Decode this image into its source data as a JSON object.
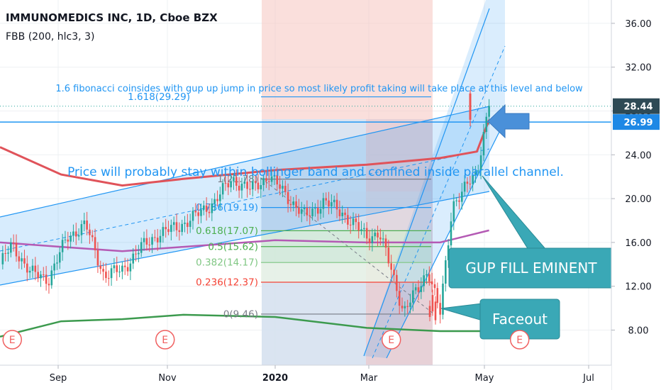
{
  "header": {
    "title": "IMMUNOMEDICS INC, 1D, Cboe BZX",
    "indicator": "FBB (200, hlc3, 3)"
  },
  "price_badges": [
    {
      "value": "28.44",
      "color": "#2e4a55"
    },
    {
      "value": "26.99",
      "color": "#1e88e5"
    }
  ],
  "annotations": {
    "fib_note": "1.6 fibonacci coinsides with gup up jump in price so most likely profit taking will take place at this level and below",
    "channel_note": "Price will probably stay within bollinger band and confined inside parallel channel.",
    "callout_gap": "GUP FILL EMINENT",
    "callout_faceout": "Faceout",
    "earnings_marker": "E"
  },
  "colors": {
    "upper_band": "#e0535a",
    "middle_band": "#b45ab4",
    "lower_band": "#3c9a4e",
    "channel": "#2196f3",
    "candle_up": "#26a69a",
    "candle_down": "#ef5350",
    "callout": "#3aa8b6"
  },
  "chart_data": {
    "type": "candlestick",
    "symbol": "IMMUNOMEDICS INC",
    "interval": "1D",
    "exchange": "Cboe BZX",
    "x_ticks": [
      "Sep",
      "Nov",
      "2020",
      "Mar",
      "May",
      "Jul"
    ],
    "y_ticks": [
      "8.00",
      "12.00",
      "16.00",
      "20.00",
      "24.00",
      "28.00",
      "32.00",
      "36.00"
    ],
    "ylim": [
      5.0,
      37.5
    ],
    "last_price": 28.44,
    "horizontal_level": 26.99,
    "price_path": [
      {
        "x": 0.0,
        "y": 14.0
      },
      {
        "x": 0.02,
        "y": 15.8
      },
      {
        "x": 0.05,
        "y": 13.2
      },
      {
        "x": 0.08,
        "y": 12.7
      },
      {
        "x": 0.11,
        "y": 16.5
      },
      {
        "x": 0.14,
        "y": 17.6
      },
      {
        "x": 0.17,
        "y": 13.0
      },
      {
        "x": 0.2,
        "y": 13.5
      },
      {
        "x": 0.23,
        "y": 15.5
      },
      {
        "x": 0.26,
        "y": 16.8
      },
      {
        "x": 0.29,
        "y": 17.4
      },
      {
        "x": 0.32,
        "y": 18.4
      },
      {
        "x": 0.35,
        "y": 19.7
      },
      {
        "x": 0.38,
        "y": 21.8
      },
      {
        "x": 0.41,
        "y": 20.8
      },
      {
        "x": 0.44,
        "y": 22.1
      },
      {
        "x": 0.47,
        "y": 20.2
      },
      {
        "x": 0.5,
        "y": 18.3
      },
      {
        "x": 0.53,
        "y": 19.8
      },
      {
        "x": 0.56,
        "y": 18.7
      },
      {
        "x": 0.6,
        "y": 16.5
      },
      {
        "x": 0.62,
        "y": 16.9
      },
      {
        "x": 0.64,
        "y": 13.5
      },
      {
        "x": 0.66,
        "y": 9.7
      },
      {
        "x": 0.685,
        "y": 11.8
      },
      {
        "x": 0.7,
        "y": 13.6
      },
      {
        "x": 0.72,
        "y": 9.5
      },
      {
        "x": 0.74,
        "y": 19.5
      },
      {
        "x": 0.765,
        "y": 21.2
      },
      {
        "x": 0.78,
        "y": 22.4
      },
      {
        "x": 0.8,
        "y": 28.8
      }
    ],
    "bollinger": {
      "upper": [
        {
          "x": 0.0,
          "y": 24.7
        },
        {
          "x": 0.1,
          "y": 22.2
        },
        {
          "x": 0.2,
          "y": 21.2
        },
        {
          "x": 0.3,
          "y": 21.8
        },
        {
          "x": 0.45,
          "y": 22.6
        },
        {
          "x": 0.6,
          "y": 23.1
        },
        {
          "x": 0.72,
          "y": 23.7
        },
        {
          "x": 0.78,
          "y": 24.3
        },
        {
          "x": 0.8,
          "y": 27.2
        }
      ],
      "middle": [
        {
          "x": 0.0,
          "y": 16.0
        },
        {
          "x": 0.1,
          "y": 15.6
        },
        {
          "x": 0.2,
          "y": 15.2
        },
        {
          "x": 0.3,
          "y": 15.6
        },
        {
          "x": 0.45,
          "y": 16.2
        },
        {
          "x": 0.6,
          "y": 16.0
        },
        {
          "x": 0.72,
          "y": 16.0
        },
        {
          "x": 0.8,
          "y": 17.1
        }
      ],
      "lower": [
        {
          "x": 0.0,
          "y": 7.4
        },
        {
          "x": 0.1,
          "y": 8.8
        },
        {
          "x": 0.2,
          "y": 9.0
        },
        {
          "x": 0.3,
          "y": 9.4
        },
        {
          "x": 0.45,
          "y": 9.2
        },
        {
          "x": 0.6,
          "y": 8.2
        },
        {
          "x": 0.72,
          "y": 7.9
        },
        {
          "x": 0.8,
          "y": 7.9
        }
      ]
    },
    "fib_levels": [
      {
        "ratio": "1.618",
        "value": 29.29,
        "label": "1.618(29.29)",
        "color": "#2196f3"
      },
      {
        "ratio": "1",
        "value": 21.78,
        "label": "1(21.78)",
        "color": "#787b86"
      },
      {
        "ratio": "0.786",
        "value": 19.19,
        "label": "0.786(19.19)",
        "color": "#2196f3"
      },
      {
        "ratio": "0.618",
        "value": 17.07,
        "label": "0.618(17.07)",
        "color": "#4caf50"
      },
      {
        "ratio": "0.5",
        "value": 15.62,
        "label": "0.5(15.62)",
        "color": "#4caf50"
      },
      {
        "ratio": "0.382",
        "value": 14.17,
        "label": "0.382(14.17)",
        "color": "#81c784"
      },
      {
        "ratio": "0.236",
        "value": 12.37,
        "label": "0.236(12.37)",
        "color": "#f44336"
      },
      {
        "ratio": "0",
        "value": 9.46,
        "label": "0(9.46)",
        "color": "#787b86"
      }
    ],
    "earnings_markers_x": [
      0.02,
      0.27,
      0.64,
      0.85
    ],
    "grid": true,
    "legend": "top-left"
  }
}
